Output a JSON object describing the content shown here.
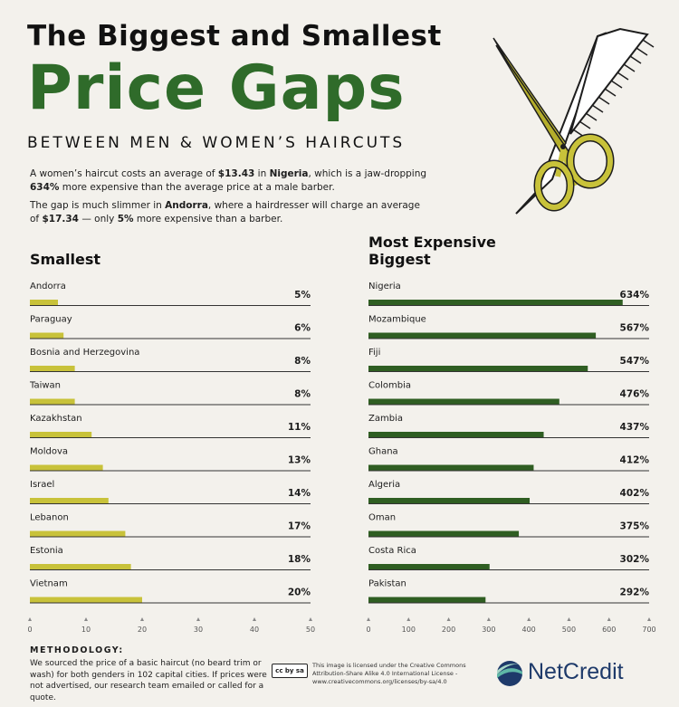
{
  "header": {
    "title_line1": "The Biggest and Smallest",
    "title_line2": "Price Gaps",
    "subtitle": "BETWEEN MEN & WOMEN’S HAIRCUTS"
  },
  "intro": {
    "p1_a": "A women’s haircut costs an average of ",
    "p1_price": "$13.43",
    "p1_b": " in ",
    "p1_country": "Nigeria",
    "p1_c": ", which is a jaw-dropping ",
    "p1_pct": "634%",
    "p1_d": " more expensive than the average price at a male barber.",
    "p2_a": "The gap is much slimmer in ",
    "p2_country": "Andorra",
    "p2_b": ", where a hairdresser will charge an average of ",
    "p2_price": "$17.34",
    "p2_c": " — only ",
    "p2_pct": "5%",
    "p2_d": " more expensive than a barber."
  },
  "chart_data": [
    {
      "type": "bar",
      "title": "Smallest",
      "categories": [
        "Andorra",
        "Paraguay",
        "Bosnia and Herzegovina",
        "Taiwan",
        "Kazakhstan",
        "Moldova",
        "Israel",
        "Lebanon",
        "Estonia",
        "Vietnam"
      ],
      "values": [
        5,
        6,
        8,
        8,
        11,
        13,
        14,
        17,
        18,
        20
      ],
      "labels": [
        "5%",
        "6%",
        "8%",
        "8%",
        "11%",
        "13%",
        "14%",
        "17%",
        "18%",
        "20%"
      ],
      "xlim": [
        0,
        50
      ],
      "ticks": [
        "0",
        "10",
        "20",
        "30",
        "40",
        "50"
      ],
      "color": "#c8c23a"
    },
    {
      "type": "bar",
      "title_line1": "Most Expensive",
      "title": "Biggest",
      "categories": [
        "Nigeria",
        "Mozambique",
        "Fiji",
        "Colombia",
        "Zambia",
        "Ghana",
        "Algeria",
        "Oman",
        "Costa Rica",
        "Pakistan"
      ],
      "values": [
        634,
        567,
        547,
        476,
        437,
        412,
        402,
        375,
        302,
        292
      ],
      "labels": [
        "634%",
        "567%",
        "547%",
        "476%",
        "437%",
        "412%",
        "402%",
        "375%",
        "302%",
        "292%"
      ],
      "xlim": [
        0,
        700
      ],
      "ticks": [
        "0",
        "100",
        "200",
        "300",
        "400",
        "500",
        "600",
        "700"
      ],
      "color": "#2f5e22"
    }
  ],
  "footer": {
    "methodology_title": "METHODOLOGY:",
    "methodology_text": "We sourced the price of a basic haircut (no beard trim or wash) for both genders in 102 capital cities. If prices were not advertised, our research team emailed or called for a quote.",
    "license_text": "This image is licensed under the Creative Commons Attribution-Share Alike 4.0 International License - www.creativecommons.org/licenses/by-sa/4.0",
    "cc_badge": "cc by sa",
    "brand": "NetCredit"
  }
}
